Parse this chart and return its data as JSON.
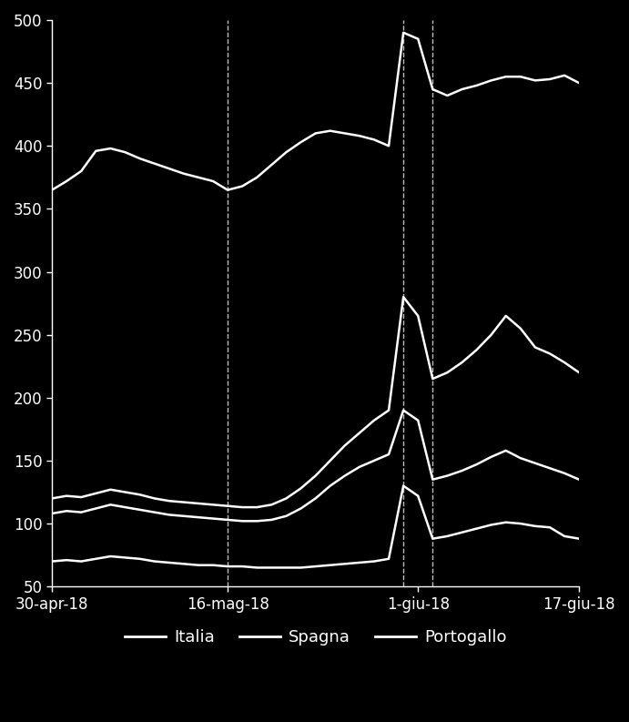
{
  "background_color": "#000000",
  "text_color": "#ffffff",
  "ylim": [
    50,
    500
  ],
  "yticks": [
    50,
    100,
    150,
    200,
    250,
    300,
    350,
    400,
    450,
    500
  ],
  "xtick_labels": [
    "30-apr-18",
    "16-mag-18",
    "1-giu-18",
    "17-giu-18"
  ],
  "xtick_positions": [
    0,
    12,
    25,
    36
  ],
  "vlines": [
    12,
    24,
    26
  ],
  "legend_labels": [
    "Italia",
    "Spagna",
    "Portogallo"
  ],
  "n_points": 37,
  "italia": [
    365,
    372,
    380,
    396,
    398,
    395,
    390,
    386,
    382,
    378,
    375,
    372,
    365,
    368,
    375,
    385,
    395,
    403,
    410,
    412,
    410,
    408,
    405,
    400,
    490,
    485,
    445,
    440,
    445,
    448,
    452,
    455,
    455,
    452,
    453,
    456,
    450
  ],
  "spagna": [
    120,
    122,
    121,
    124,
    127,
    125,
    123,
    120,
    118,
    117,
    116,
    115,
    114,
    113,
    113,
    115,
    120,
    128,
    138,
    150,
    162,
    172,
    182,
    190,
    280,
    265,
    215,
    220,
    228,
    238,
    250,
    265,
    255,
    240,
    235,
    228,
    220
  ],
  "portogallo": [
    108,
    110,
    109,
    112,
    115,
    113,
    111,
    109,
    107,
    106,
    105,
    104,
    103,
    102,
    102,
    103,
    106,
    112,
    120,
    130,
    138,
    145,
    150,
    155,
    190,
    182,
    135,
    138,
    142,
    147,
    153,
    158,
    152,
    148,
    144,
    140,
    135
  ],
  "germania": [
    70,
    71,
    70,
    72,
    74,
    73,
    72,
    70,
    69,
    68,
    67,
    67,
    66,
    66,
    65,
    65,
    65,
    65,
    66,
    67,
    68,
    69,
    70,
    72,
    130,
    122,
    88,
    90,
    93,
    96,
    99,
    101,
    100,
    98,
    97,
    90,
    88
  ]
}
